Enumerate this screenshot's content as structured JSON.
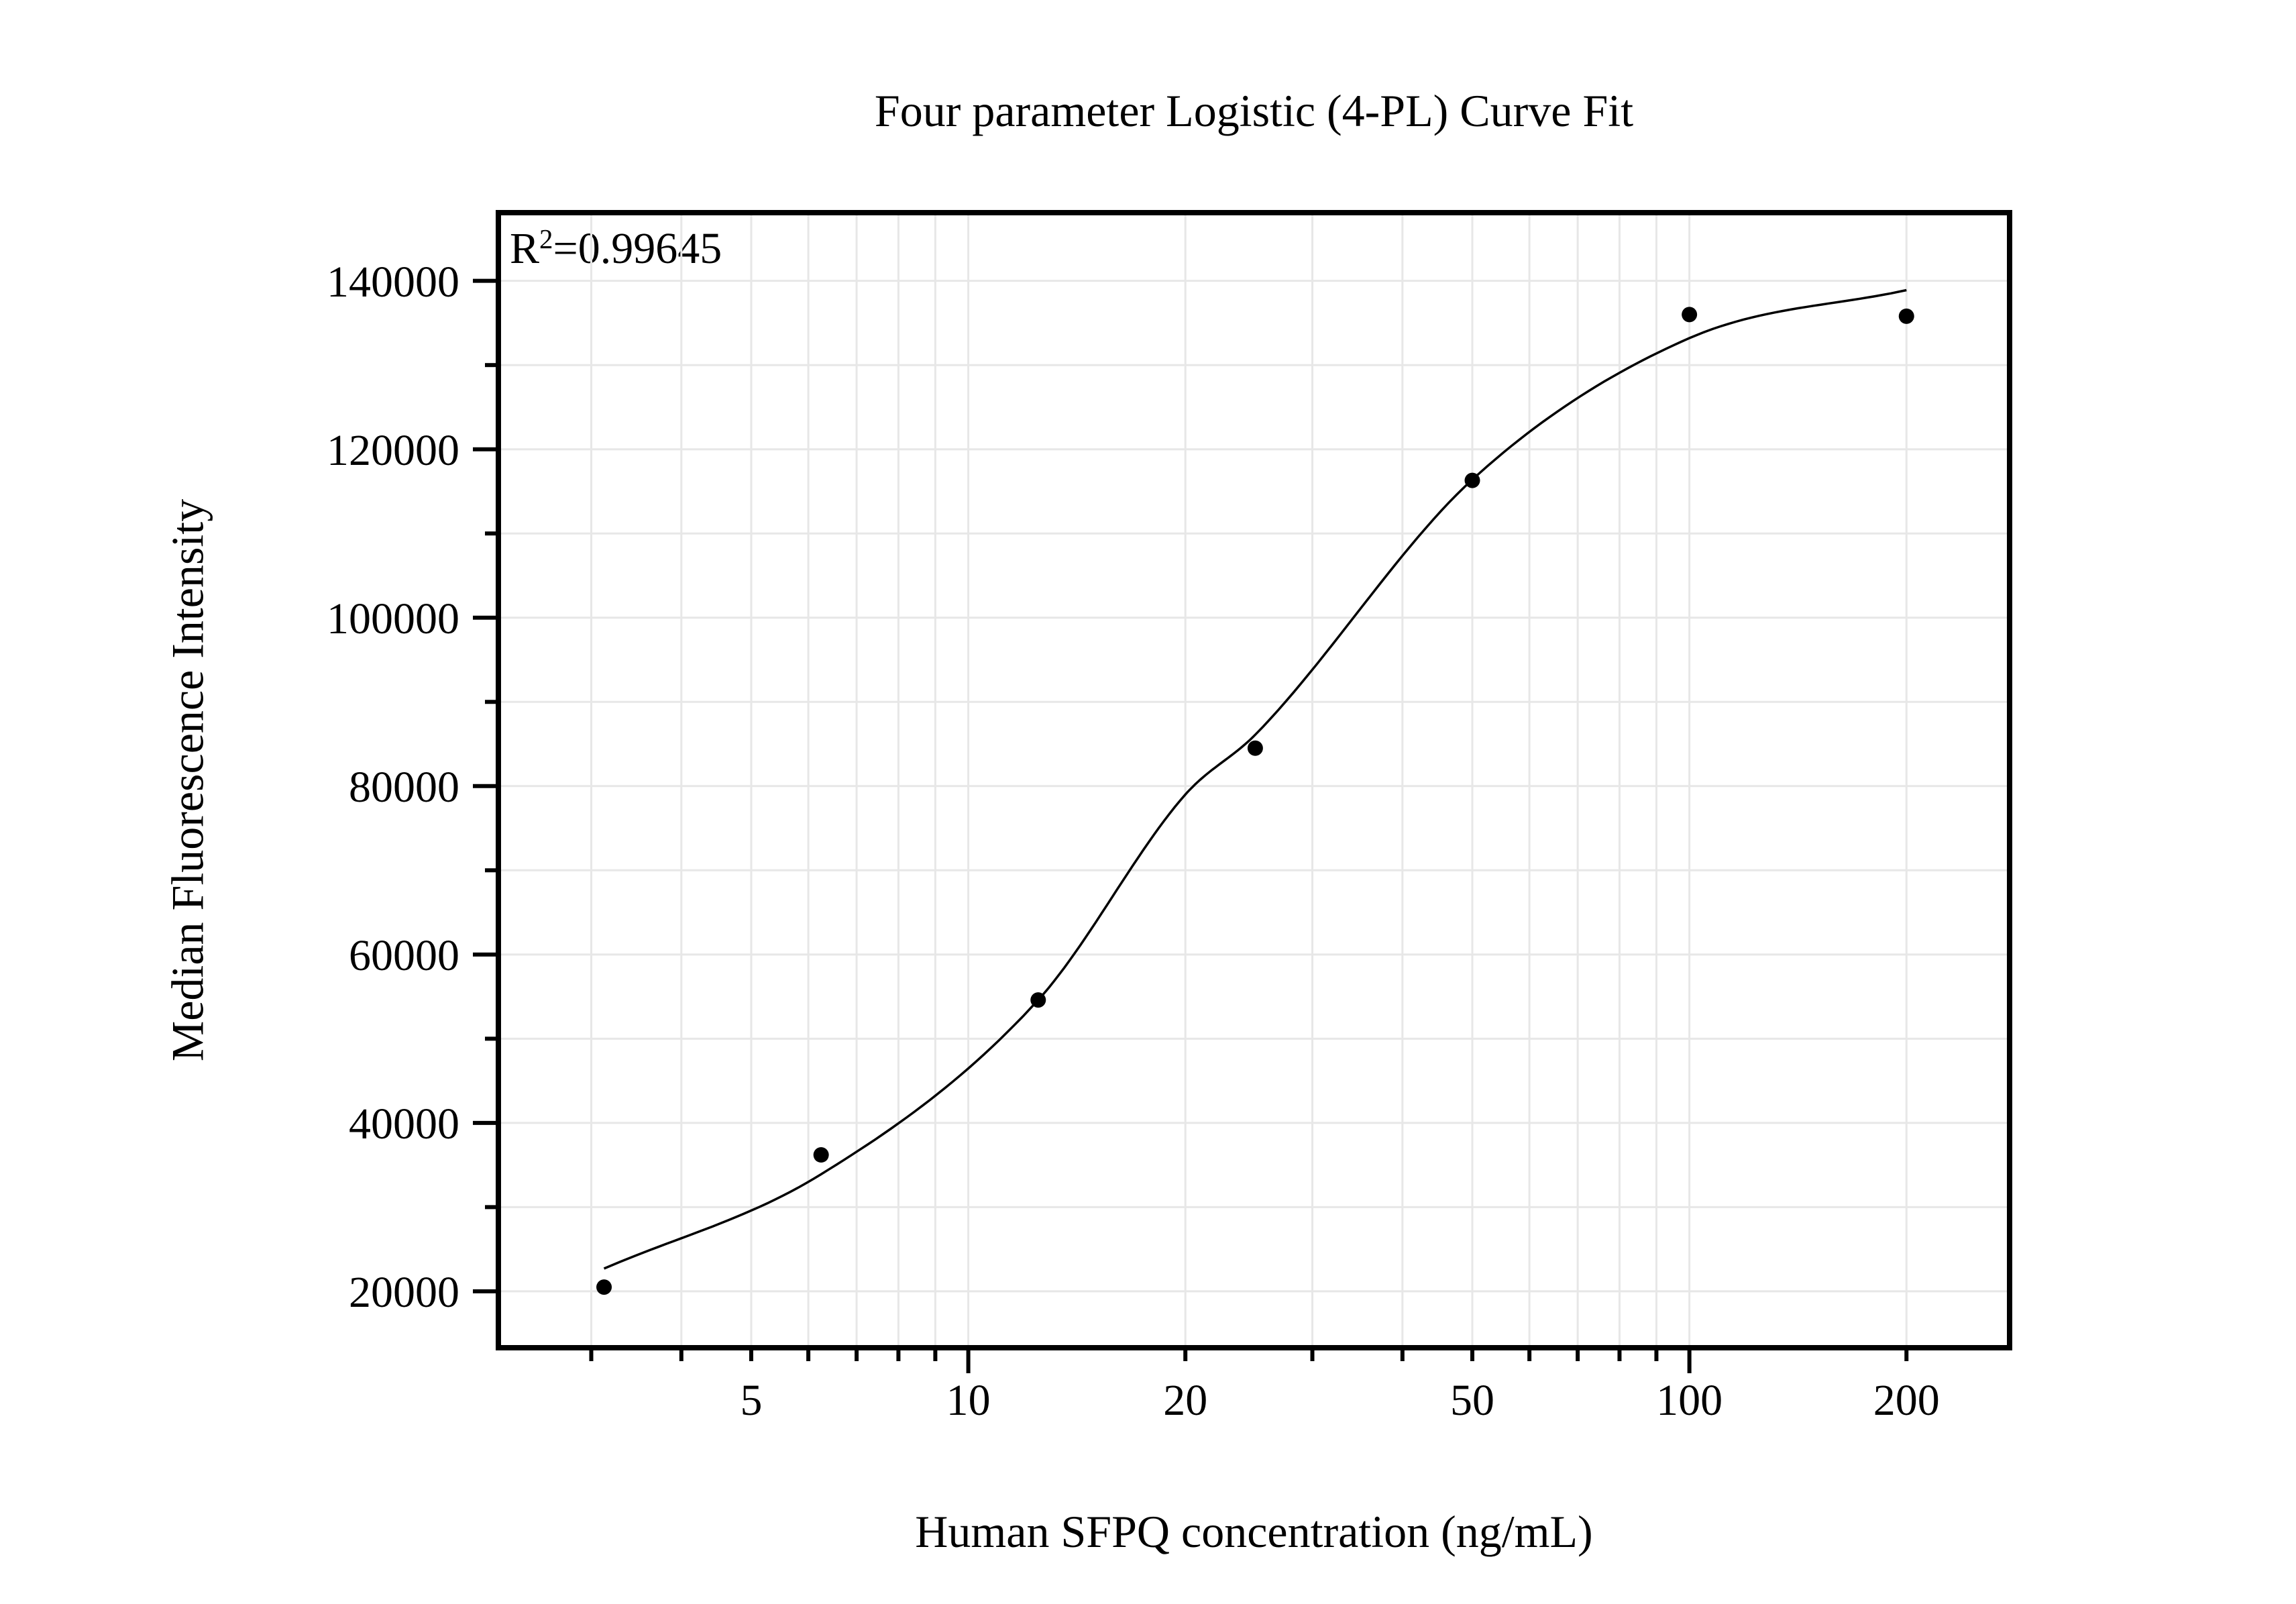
{
  "colors": {
    "background": "#ffffff",
    "text": "#000000",
    "grid": "#e7e7e7",
    "frame": "#000000",
    "curve": "#000000",
    "point": "#000000"
  },
  "chart_data": {
    "type": "scatter",
    "title": "Four parameter Logistic (4-PL) Curve Fit",
    "xlabel": "Human SFPQ concentration (ng/mL)",
    "ylabel": "Median Fluorescence Intensity",
    "annotation": {
      "base": "R",
      "sup": "2",
      "rest": "=0.99645"
    },
    "x_scale": "log",
    "y_scale": "linear",
    "xlim": [
      2.23,
      278
    ],
    "ylim": [
      13300,
      148100
    ],
    "grid": true,
    "legend": "none",
    "x_ticks": [
      {
        "v": 3,
        "label": "",
        "major": false
      },
      {
        "v": 4,
        "label": "",
        "major": false
      },
      {
        "v": 5,
        "label": "5",
        "major": false
      },
      {
        "v": 6,
        "label": "",
        "major": false
      },
      {
        "v": 7,
        "label": "",
        "major": false
      },
      {
        "v": 8,
        "label": "",
        "major": false
      },
      {
        "v": 9,
        "label": "",
        "major": false
      },
      {
        "v": 10,
        "label": "10",
        "major": true
      },
      {
        "v": 20,
        "label": "20",
        "major": false
      },
      {
        "v": 30,
        "label": "",
        "major": false
      },
      {
        "v": 40,
        "label": "",
        "major": false
      },
      {
        "v": 50,
        "label": "50",
        "major": false
      },
      {
        "v": 60,
        "label": "",
        "major": false
      },
      {
        "v": 70,
        "label": "",
        "major": false
      },
      {
        "v": 80,
        "label": "",
        "major": false
      },
      {
        "v": 90,
        "label": "",
        "major": false
      },
      {
        "v": 100,
        "label": "100",
        "major": true
      },
      {
        "v": 200,
        "label": "200",
        "major": false
      }
    ],
    "y_major_ticks": [
      {
        "v": 20000,
        "label": "20000"
      },
      {
        "v": 40000,
        "label": "40000"
      },
      {
        "v": 60000,
        "label": "60000"
      },
      {
        "v": 80000,
        "label": "80000"
      },
      {
        "v": 100000,
        "label": "100000"
      },
      {
        "v": 120000,
        "label": "120000"
      },
      {
        "v": 140000,
        "label": "140000"
      }
    ],
    "y_minor_ticks": [
      30000,
      50000,
      70000,
      90000,
      110000,
      130000
    ],
    "points": [
      {
        "x": 3.125,
        "y": 20500
      },
      {
        "x": 6.25,
        "y": 36200
      },
      {
        "x": 12.5,
        "y": 54600
      },
      {
        "x": 25,
        "y": 84500
      },
      {
        "x": 50,
        "y": 116300
      },
      {
        "x": 100,
        "y": 136000
      },
      {
        "x": 200,
        "y": 135800
      }
    ],
    "fit_curve": {
      "model": "4-PL",
      "r_squared": 0.99645,
      "x_range": [
        3.125,
        200
      ],
      "samples": [
        {
          "x": 3.125,
          "y": 22700
        },
        {
          "x": 6.25,
          "y": 33900
        },
        {
          "x": 12.5,
          "y": 54600
        },
        {
          "x": 20,
          "y": 79000
        },
        {
          "x": 25,
          "y": 86100
        },
        {
          "x": 50,
          "y": 116400
        },
        {
          "x": 100,
          "y": 133200
        },
        {
          "x": 200,
          "y": 138900
        }
      ]
    }
  }
}
